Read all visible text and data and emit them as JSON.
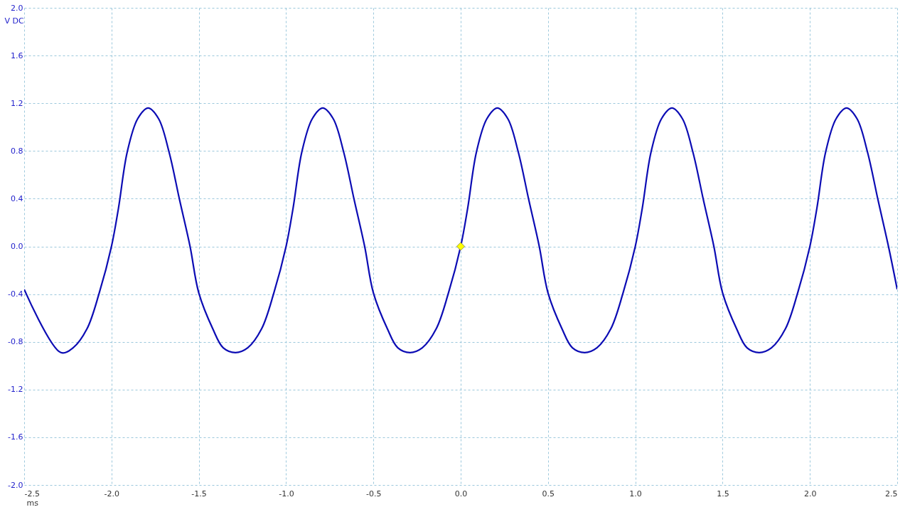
{
  "chart_data": {
    "type": "line",
    "xlabel": "ms",
    "ylabel": "V DC",
    "grid": true,
    "xlim": [
      -2.5,
      2.5
    ],
    "ylim": [
      -2.0,
      2.0
    ],
    "xticks": [
      {
        "value": -2.5,
        "label": "-2.5"
      },
      {
        "value": -2,
        "label": "-2.0"
      },
      {
        "value": -1.5,
        "label": "-1.5"
      },
      {
        "value": -1,
        "label": "-1.0"
      },
      {
        "value": -0.5,
        "label": "-0.5"
      },
      {
        "value": 0,
        "label": "0.0"
      },
      {
        "value": 0.5,
        "label": "0.5"
      },
      {
        "value": 1,
        "label": "1.0"
      },
      {
        "value": 1.5,
        "label": "1.5"
      },
      {
        "value": 2,
        "label": "2.0"
      },
      {
        "value": 2.5,
        "label": "2.5"
      }
    ],
    "yticks": [
      {
        "value": -2,
        "label": "-2.0"
      },
      {
        "value": -1.6,
        "label": "-1.6"
      },
      {
        "value": -1.2,
        "label": "-1.2"
      },
      {
        "value": -0.8,
        "label": "-0.8"
      },
      {
        "value": -0.4,
        "label": "-0.4"
      },
      {
        "value": 0,
        "label": "0.0"
      },
      {
        "value": 0.4,
        "label": "0.4"
      },
      {
        "value": 0.8,
        "label": "0.8"
      },
      {
        "value": 1.2,
        "label": "1.2"
      },
      {
        "value": 1.6,
        "label": "1.6"
      },
      {
        "value": 2,
        "label": "2.0"
      }
    ],
    "series": [
      {
        "color": "#0c0cb4",
        "x": [
          -2.5,
          -2.29,
          -2.22,
          -2.14,
          -2.07,
          -2.0,
          -1.96,
          -1.91,
          -1.85,
          -1.79,
          -1.73,
          -1.67,
          -1.61,
          -1.55,
          -1.5,
          -1.42,
          -1.36,
          -1.29,
          -1.22,
          -1.14,
          -1.07,
          -1.0,
          -0.96,
          -0.91,
          -0.85,
          -0.79,
          -0.73,
          -0.67,
          -0.61,
          -0.55,
          -0.5,
          -0.42,
          -0.36,
          -0.29,
          -0.22,
          -0.14,
          -0.07,
          0.0,
          0.04,
          0.09,
          0.15,
          0.21,
          0.27,
          0.33,
          0.39,
          0.45,
          0.5,
          0.58,
          0.64,
          0.71,
          0.78,
          0.86,
          0.93,
          1.0,
          1.04,
          1.09,
          1.15,
          1.21,
          1.27,
          1.33,
          1.39,
          1.45,
          1.5,
          1.58,
          1.64,
          1.71,
          1.78,
          1.86,
          1.93,
          2.0,
          2.04,
          2.09,
          2.15,
          2.21,
          2.27,
          2.33,
          2.39,
          2.45,
          2.5
        ],
        "values": [
          -0.36,
          -0.89,
          -0.85,
          -0.69,
          -0.39,
          0.0,
          0.32,
          0.79,
          1.07,
          1.16,
          1.07,
          0.79,
          0.39,
          0.0,
          -0.39,
          -0.69,
          -0.85,
          -0.89,
          -0.85,
          -0.69,
          -0.39,
          0.0,
          0.32,
          0.79,
          1.07,
          1.16,
          1.07,
          0.79,
          0.39,
          0.0,
          -0.39,
          -0.69,
          -0.85,
          -0.89,
          -0.85,
          -0.69,
          -0.39,
          0.0,
          0.32,
          0.79,
          1.07,
          1.16,
          1.07,
          0.79,
          0.39,
          0.0,
          -0.39,
          -0.69,
          -0.85,
          -0.89,
          -0.85,
          -0.69,
          -0.39,
          0.0,
          0.32,
          0.79,
          1.07,
          1.16,
          1.07,
          0.79,
          0.39,
          0.0,
          -0.39,
          -0.69,
          -0.85,
          -0.89,
          -0.85,
          -0.69,
          -0.39,
          0.0,
          0.32,
          0.79,
          1.07,
          1.16,
          1.07,
          0.79,
          0.39,
          0.0,
          -0.36
        ]
      },
      {
        "type": "scatter",
        "color": "#ffff00",
        "marker": "diamond",
        "x": [
          0
        ],
        "values": [
          0
        ]
      }
    ]
  }
}
